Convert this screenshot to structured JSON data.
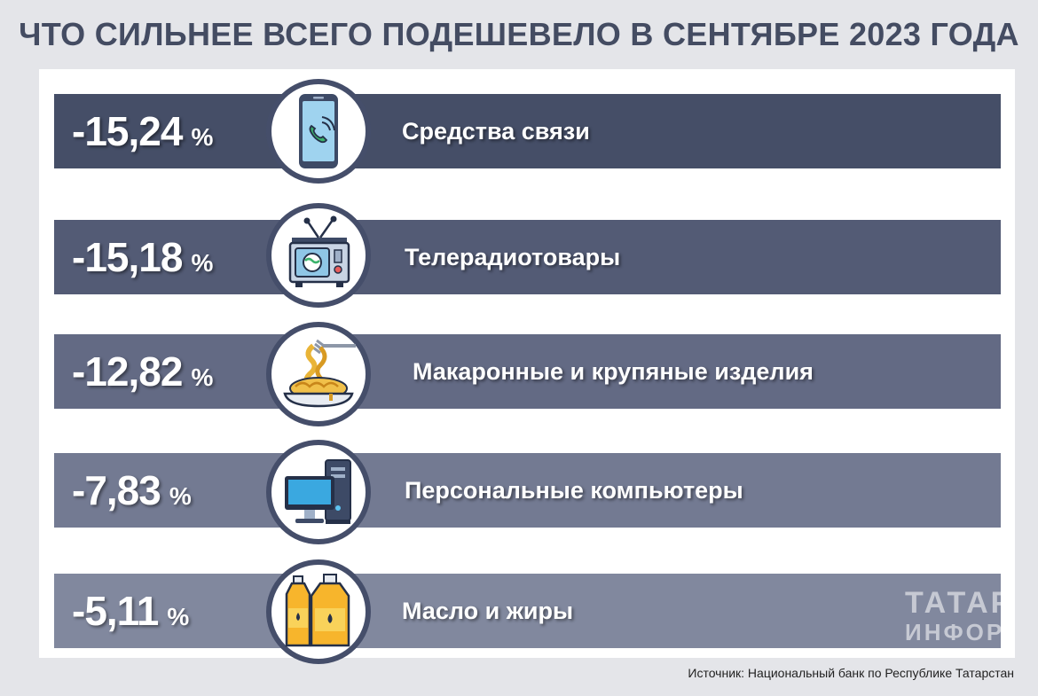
{
  "chart_data": {
    "type": "bar",
    "title": "ЧТО СИЛЬНЕЕ ВСЕГО ПОДЕШЕВЕЛО В СЕНТЯБРЕ 2023 ГОДА",
    "unit": "%",
    "categories": [
      "Средства связи",
      "Телерадиотовары",
      "Макаронные и крупяные изделия",
      "Персональные компьютеры",
      "Масло и жиры"
    ],
    "values": [
      -15.24,
      -15.18,
      -12.82,
      -7.83,
      -5.11
    ],
    "value_labels": [
      "-15,24",
      "-15,18",
      "-12,82",
      "-7,83",
      "-5,11"
    ],
    "source": "Источник: Национальный банк по Республике Татарстан"
  },
  "rows": [
    {
      "value": "-15,24",
      "unit": "%",
      "label": "Средства связи",
      "icon": "smartphone-icon",
      "color": "#454e67"
    },
    {
      "value": "-15,18",
      "unit": "%",
      "label": "Телерадиотовары",
      "icon": "tv-icon",
      "color": "#535b75"
    },
    {
      "value": "-12,82",
      "unit": "%",
      "label": "Макаронные и крупяные изделия",
      "icon": "pasta-icon",
      "color": "#636a84"
    },
    {
      "value": "-7,83",
      "unit": "%",
      "label": "Персональные компьютеры",
      "icon": "computer-icon",
      "color": "#737a92"
    },
    {
      "value": "-5,11",
      "unit": "%",
      "label": "Масло и жиры",
      "icon": "oil-bottles-icon",
      "color": "#81889e"
    }
  ],
  "watermark": {
    "line1": "ТАТАР",
    "line2": "ИНФОРМ"
  },
  "colors": {
    "background": "#e4e5e9",
    "title": "#444c62",
    "circle_border": "#454e6a"
  }
}
